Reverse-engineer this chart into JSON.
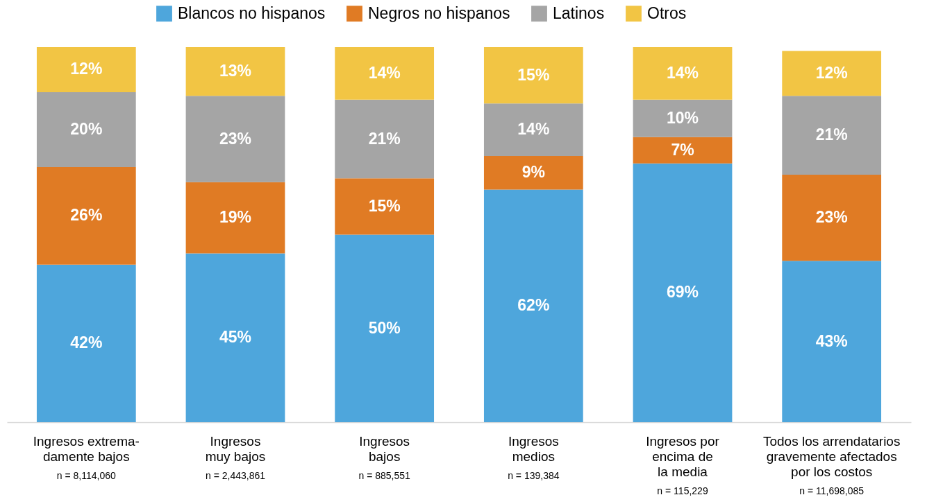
{
  "chart_data": {
    "type": "bar",
    "stacked": true,
    "legend": "top",
    "grid": false,
    "categories": [
      "Ingresos extrema-\ndamente bajos",
      "Ingresos\nmuy bajos",
      "Ingresos\nbajos",
      "Ingresos\nmedios",
      "Ingresos por\nencima de\nla media",
      "Todos los arrendatarios\ngravemente afectados\npor los costos"
    ],
    "annotations": [
      "n = 8,114,060",
      "n = 2,443,861",
      "n = 885,551",
      "n = 139,384",
      "n = 115,229",
      "n = 11,698,085"
    ],
    "series": [
      {
        "name": "Blancos no hispanos",
        "color": "#4ea6dc",
        "values": [
          42,
          45,
          50,
          62,
          69,
          43
        ],
        "value_labels": [
          "42%",
          "45%",
          "50%",
          "62%",
          "69%",
          "43%"
        ]
      },
      {
        "name": "Negros no hispanos",
        "color": "#e07b24",
        "values": [
          26,
          19,
          15,
          9,
          7,
          23
        ],
        "value_labels": [
          "26%",
          "19%",
          "15%",
          "9%",
          "7%",
          "23%"
        ]
      },
      {
        "name": "Latinos",
        "color": "#a5a5a5",
        "values": [
          20,
          23,
          21,
          14,
          10,
          21
        ],
        "value_labels": [
          "20%",
          "23%",
          "21%",
          "14%",
          "10%",
          "21%"
        ]
      },
      {
        "name": "Otros",
        "color": "#f2c544",
        "values": [
          12,
          13,
          14,
          15,
          14,
          12
        ],
        "value_labels": [
          "12%",
          "13%",
          "14%",
          "15%",
          "14%",
          "12%"
        ]
      }
    ]
  }
}
